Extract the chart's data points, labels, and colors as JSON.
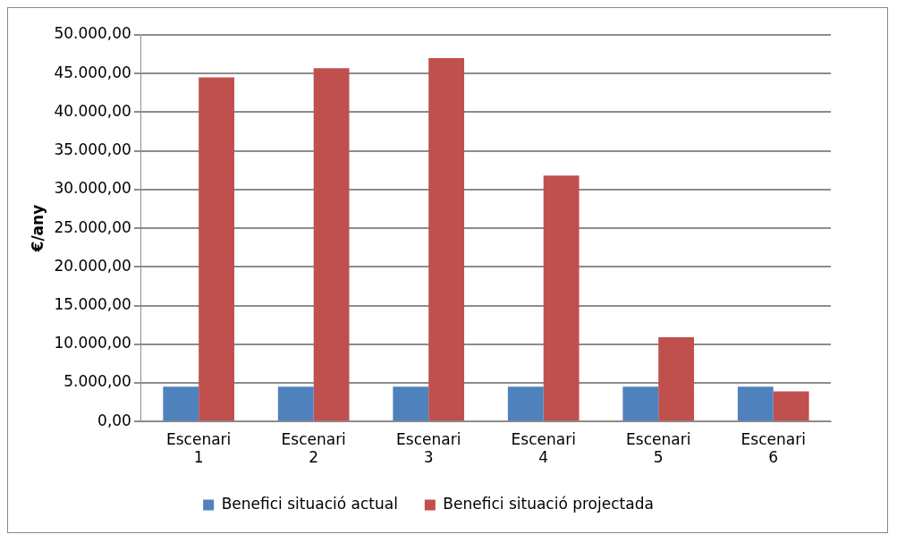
{
  "chart_data": {
    "type": "bar",
    "ylabel": "€/any",
    "categories": [
      "Escenari 1",
      "Escenari 2",
      "Escenari 3",
      "Escenari 4",
      "Escenari 5",
      "Escenari 6"
    ],
    "series": [
      {
        "name": "Benefici situació actual",
        "color": "#4f81bd",
        "values": [
          4500,
          4500,
          4500,
          4500,
          4500,
          4500
        ]
      },
      {
        "name": "Benefici situació projectada",
        "color": "#c0504d",
        "values": [
          44500,
          45700,
          47000,
          31800,
          10900,
          3900
        ]
      }
    ],
    "ylim": [
      0,
      50000
    ],
    "yticks": [
      {
        "value": 0,
        "label": "0,00"
      },
      {
        "value": 5000,
        "label": "5.000,00"
      },
      {
        "value": 10000,
        "label": "10.000,00"
      },
      {
        "value": 15000,
        "label": "15.000,00"
      },
      {
        "value": 20000,
        "label": "20.000,00"
      },
      {
        "value": 25000,
        "label": "25.000,00"
      },
      {
        "value": 30000,
        "label": "30.000,00"
      },
      {
        "value": 35000,
        "label": "35.000,00"
      },
      {
        "value": 40000,
        "label": "40.000,00"
      },
      {
        "value": 45000,
        "label": "45.000,00"
      },
      {
        "value": 50000,
        "label": "50.000,00"
      }
    ],
    "grid": "y",
    "legend": "bottom"
  }
}
